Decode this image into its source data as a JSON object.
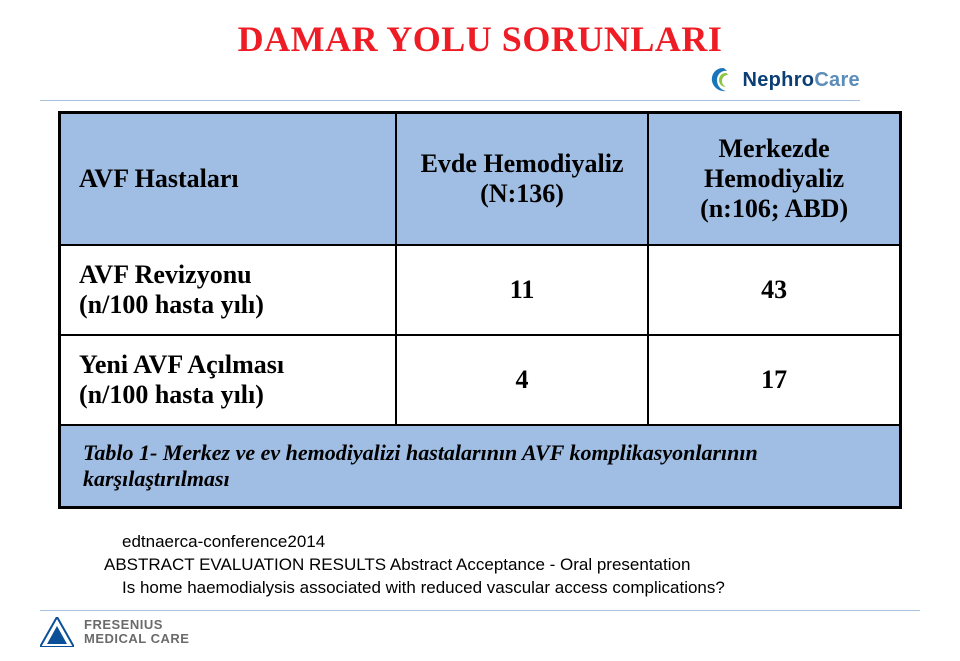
{
  "colors": {
    "title": "#ee1c25",
    "nephro_swirl_outer": "#1b75bb",
    "nephro_swirl_inner": "#8cc63f",
    "nephro_brand_bold": "#0b3f74",
    "nephro_brand_light": "#5b8db8",
    "divider": "#a9c3df",
    "table_border": "#000000",
    "header_bg": "#a0bde3",
    "fmc_blue": "#0b4f98",
    "fmc_grey": "#6b6b6b"
  },
  "title": "DAMAR YOLU SORUNLARI",
  "logo_nephro": {
    "bold": "Nephro",
    "light": "Care"
  },
  "table": {
    "headers": [
      "AVF Hastaları",
      "Evde Hemodiyaliz\n(N:136)",
      "Merkezde Hemodiyaliz\n(n:106; ABD)"
    ],
    "rows": [
      {
        "label": "AVF Revizyonu\n(n/100 hasta yılı)",
        "c1": "11",
        "c2": "43"
      },
      {
        "label": "Yeni AVF Açılması\n(n/100 hasta yılı)",
        "c1": "4",
        "c2": "17"
      }
    ],
    "caption": "Tablo 1- Merkez ve ev hemodiyalizi hastalarının AVF komplikasyonlarının karşılaştırılması"
  },
  "footnote": {
    "l1": "edtnaerca-conference2014",
    "l2": "ABSTRACT EVALUATION RESULTS  Abstract Acceptance - Oral presentation",
    "l3": "Is home haemodialysis associated with reduced vascular access complications?"
  },
  "fmc": {
    "l1": "FRESENIUS",
    "l2": "MEDICAL CARE"
  }
}
